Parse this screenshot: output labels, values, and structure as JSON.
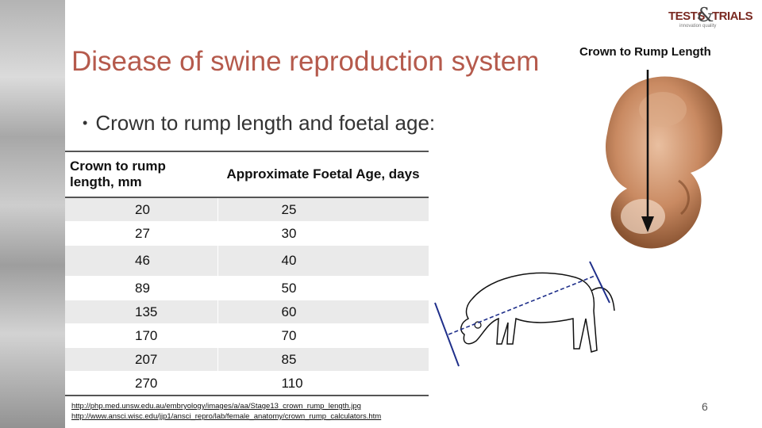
{
  "logo": {
    "word1": "TESTS",
    "amp": "&",
    "word2": "TRIALS",
    "tagline": "innovation   quality"
  },
  "title": "Disease of swine reproduction system",
  "bullet": "Crown to rump length and foetal age:",
  "table": {
    "headers": [
      "Crown to rump length, mm",
      "Approximate Foetal Age, days"
    ],
    "rows": [
      [
        "20",
        "25"
      ],
      [
        "27",
        "30"
      ],
      [
        "46",
        "40"
      ],
      [
        "89",
        "50"
      ],
      [
        "135",
        "60"
      ],
      [
        "170",
        "70"
      ],
      [
        "207",
        "85"
      ],
      [
        "270",
        "110"
      ]
    ]
  },
  "figure_label": "Crown to Rump Length",
  "references": [
    "http://php.med.unsw.edu.au/embryology/images/a/aa/Stage13_crown_rump_length.jpg",
    "http://www.ansci.wisc.edu/jjp1/ansci_repro/lab/female_anatomy/crown_rump_calculators.htm"
  ],
  "page_number": "6",
  "colors": {
    "title": "#b55a4c",
    "logo": "#7a2a22",
    "table_band": "#eaeaea",
    "measure_line": "#1f2f8a"
  }
}
